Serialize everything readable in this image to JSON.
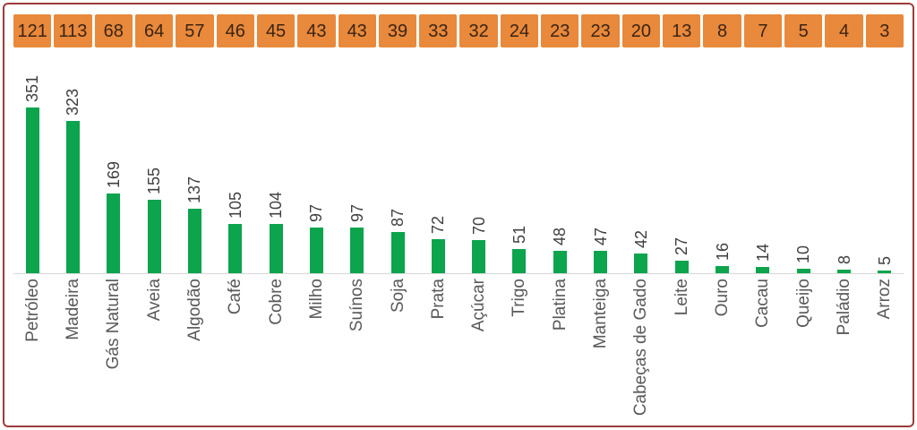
{
  "colors": {
    "frame_border": "#9E3B39",
    "header_cell": "#E8893C",
    "header_cell_text": "#3B2412",
    "bar_green": "#0CA44D",
    "value_label_text": "#3F3F3F",
    "category_label_text": "#595959",
    "axis_line": "#D9D9D9",
    "background": "#FFFFFF"
  },
  "chart_data": {
    "type": "bar",
    "title": "",
    "categories": [
      "Petróleo",
      "Madeira",
      "Gás Natural",
      "Aveia",
      "Algodão",
      "Café",
      "Cobre",
      "Milho",
      "Suínos",
      "Soja",
      "Prata",
      "Açúcar",
      "Trigo",
      "Platina",
      "Manteiga",
      "Cabeças de Gado",
      "Leite",
      "Ouro",
      "Cacau",
      "Queijo",
      "Paládio",
      "Arroz"
    ],
    "series": [
      {
        "name": "header_strip_values",
        "display": "orange-cells-row-above-chart",
        "values": [
          121,
          113,
          68,
          64,
          57,
          46,
          45,
          43,
          43,
          39,
          33,
          32,
          24,
          23,
          23,
          20,
          13,
          8,
          7,
          5,
          4,
          3
        ]
      },
      {
        "name": "bar_values",
        "display": "green-bars-with-rotated-data-labels",
        "values": [
          351,
          323,
          169,
          155,
          137,
          105,
          104,
          97,
          97,
          87,
          72,
          70,
          51,
          48,
          47,
          42,
          27,
          16,
          14,
          10,
          8,
          5
        ]
      }
    ],
    "xlabel": "",
    "ylabel": "",
    "ylim": [
      0,
      351
    ],
    "grid": false,
    "legend": false,
    "value_labels_orientation": "rotated-90-ccw",
    "category_labels_orientation": "rotated-90-ccw",
    "sort_order": "descending"
  }
}
